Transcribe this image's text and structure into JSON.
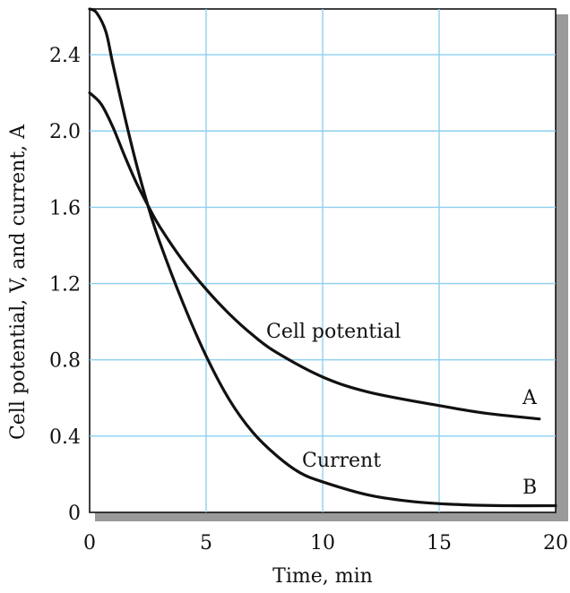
{
  "chart_data": {
    "type": "line",
    "title": "",
    "xlabel": "Time, min",
    "ylabel": "Cell potential, V, and current, A",
    "xlim": [
      0,
      20
    ],
    "ylim": [
      0,
      2.64
    ],
    "x_ticks": [
      "0",
      "5",
      "10",
      "15",
      "20"
    ],
    "y_ticks": [
      "0",
      "0.4",
      "0.8",
      "1.2",
      "1.6",
      "2.0",
      "2.4"
    ],
    "x_tick_values": [
      0,
      5,
      10,
      15,
      20
    ],
    "y_tick_values": [
      0,
      0.4,
      0.8,
      1.2,
      1.6,
      2.0,
      2.4
    ],
    "grid": true,
    "annotations": {
      "cell_potential": "Cell potential",
      "current": "Current",
      "end_a": "A",
      "end_b": "B"
    },
    "series": [
      {
        "name": "Cell potential",
        "x": [
          0,
          0.5,
          1,
          1.5,
          2,
          2.5,
          3,
          4,
          5,
          6,
          7,
          8,
          10,
          12,
          15,
          17,
          19.3
        ],
        "y": [
          2.2,
          2.14,
          2.02,
          1.87,
          1.73,
          1.61,
          1.5,
          1.32,
          1.17,
          1.04,
          0.93,
          0.84,
          0.71,
          0.63,
          0.56,
          0.52,
          0.49
        ]
      },
      {
        "name": "Current",
        "x": [
          0,
          0.3,
          0.7,
          1,
          1.5,
          2,
          2.5,
          3,
          4,
          5,
          6,
          7,
          8,
          9,
          10,
          12,
          14,
          16,
          18,
          20
        ],
        "y": [
          2.64,
          2.62,
          2.52,
          2.35,
          2.08,
          1.83,
          1.61,
          1.42,
          1.1,
          0.82,
          0.59,
          0.42,
          0.3,
          0.21,
          0.16,
          0.09,
          0.055,
          0.04,
          0.035,
          0.035
        ]
      }
    ]
  },
  "colors": {
    "grid": "#8ecff0",
    "curve": "#111111",
    "shadow": "#9a9a9a"
  }
}
